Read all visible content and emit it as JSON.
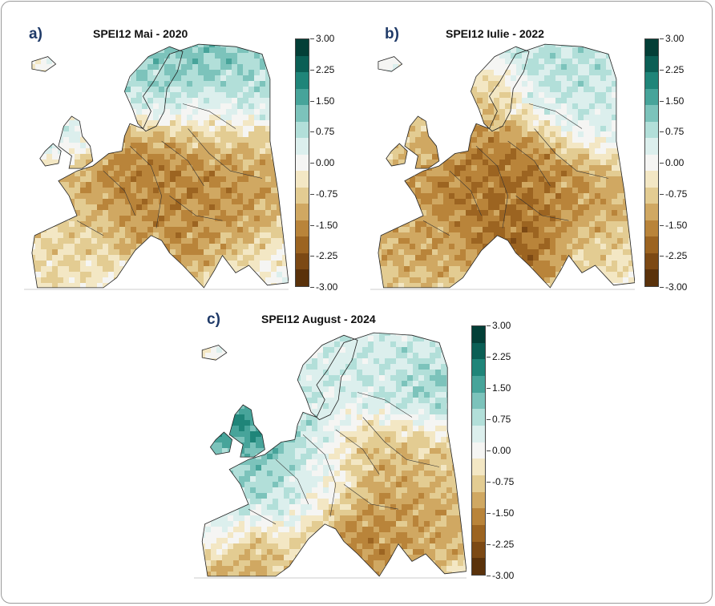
{
  "figure": {
    "panels": [
      {
        "label": "a)",
        "title": "SPEI12 Mai - 2020",
        "pattern": "dry_central_wet_north"
      },
      {
        "label": "b)",
        "title": "SPEI12 Iulie - 2022",
        "pattern": "dry_west_central"
      },
      {
        "label": "c)",
        "title": "SPEI12 August - 2024",
        "pattern": "wet_west_dry_southeast"
      }
    ]
  },
  "legend": {
    "tick_labels": [
      "3.00",
      "2.25",
      "1.50",
      "0.75",
      "0.00",
      "-0.75",
      "-1.50",
      "-2.25",
      "-3.00"
    ],
    "range": [
      -3.0,
      3.0
    ],
    "colors": [
      "#033f37",
      "#0b5f55",
      "#1f8579",
      "#47a49a",
      "#7cc3bb",
      "#b2dfd9",
      "#dcefed",
      "#f5f5f3",
      "#f3e7c4",
      "#e3cc92",
      "#d0a862",
      "#b9843a",
      "#9c6421",
      "#7c4914",
      "#5a320b"
    ]
  },
  "chart_data": {
    "type": "heatmap",
    "variable": "SPEI12",
    "maps": [
      {
        "title": "SPEI12 Mai - 2020"
      },
      {
        "title": "SPEI12 Iulie - 2022"
      },
      {
        "title": "SPEI12 August - 2024"
      }
    ],
    "colorbar_ticks": [
      3.0,
      2.25,
      1.5,
      0.75,
      0.0,
      -0.75,
      -1.5,
      -2.25,
      -3.0
    ],
    "zlim": [
      -3.0,
      3.0
    ]
  }
}
